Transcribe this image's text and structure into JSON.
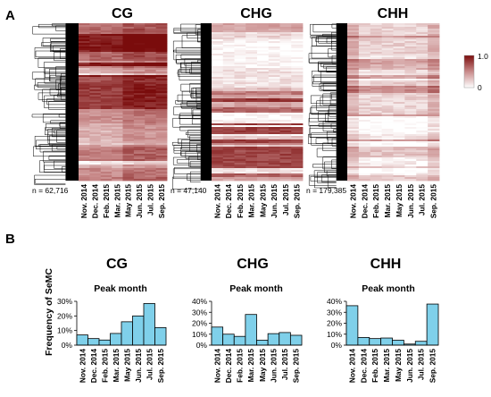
{
  "panels": {
    "a": "A",
    "b": "B"
  },
  "month_labels": [
    "Nov. 2014",
    "Dec. 2014",
    "Feb. 2015",
    "Mar. 2015",
    "May 2015",
    "Jun. 2015",
    "Jul. 2015",
    "Sep. 2015"
  ],
  "heatmaps": [
    {
      "context": "CG",
      "n_label": "n = 62,716"
    },
    {
      "context": "CHG",
      "n_label": "n = 47,140"
    },
    {
      "context": "CHH",
      "n_label": "n = 179,385"
    }
  ],
  "legend": {
    "max_label": "1.0",
    "min_label": "0",
    "colors": [
      "#ffffff",
      "#c88a8a",
      "#7a0c0c"
    ]
  },
  "bar_color": "#7fd0ea",
  "chart_data": [
    {
      "type": "bar",
      "title": "CG",
      "subtitle": "Peak month",
      "ylabel": "Frequency of SeMC",
      "categories": [
        "Nov. 2014",
        "Dec. 2014",
        "Feb. 2015",
        "Mar. 2015",
        "May 2015",
        "Jun. 2015",
        "Jul. 2015",
        "Sep. 2015"
      ],
      "values": [
        7,
        4.5,
        3.5,
        8,
        16,
        20,
        28.5,
        12
      ],
      "ylim": [
        0,
        30
      ],
      "yticks": [
        "0%",
        "10%",
        "20%",
        "30%"
      ]
    },
    {
      "type": "bar",
      "title": "CHG",
      "subtitle": "Peak month",
      "ylabel": "",
      "categories": [
        "Nov. 2014",
        "Dec. 2014",
        "Feb. 2015",
        "Mar. 2015",
        "May 2015",
        "Jun. 2015",
        "Jul. 2015",
        "Sep. 2015"
      ],
      "values": [
        16.5,
        10,
        8,
        28,
        4.5,
        10.5,
        11.5,
        9
      ],
      "ylim": [
        0,
        40
      ],
      "yticks": [
        "0%",
        "10%",
        "20%",
        "30%",
        "40%"
      ]
    },
    {
      "type": "bar",
      "title": "CHH",
      "subtitle": "Peak month",
      "ylabel": "",
      "categories": [
        "Nov. 2014",
        "Dec. 2014",
        "Feb. 2015",
        "Mar. 2015",
        "May 2015",
        "Jun. 2015",
        "Jul. 2015",
        "Sep. 2015"
      ],
      "values": [
        36,
        7,
        6,
        6.5,
        4.5,
        1,
        3.5,
        37.5
      ],
      "ylim": [
        0,
        40
      ],
      "yticks": [
        "0%",
        "10%",
        "20%",
        "30%",
        "40%"
      ]
    }
  ]
}
